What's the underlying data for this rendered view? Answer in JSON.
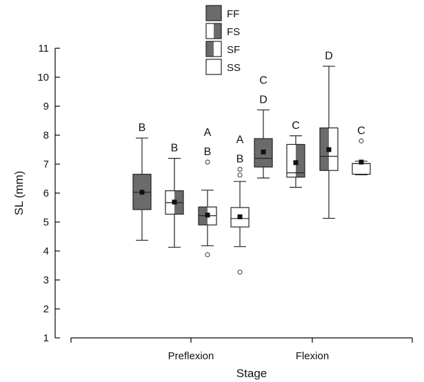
{
  "chart_data": {
    "type": "box",
    "xlabel": "Stage",
    "ylabel": "SL (mm)",
    "ylim": [
      1,
      11
    ],
    "yticks": [
      1,
      2,
      3,
      4,
      5,
      6,
      7,
      8,
      9,
      10,
      11
    ],
    "categories": [
      "Preflexion",
      "Flexion"
    ],
    "legend": {
      "placement": "top",
      "entries": [
        {
          "label": "FF",
          "fill": "full"
        },
        {
          "label": "FS",
          "fill": "right-half"
        },
        {
          "label": "SF",
          "fill": "left-half"
        },
        {
          "label": "SS",
          "fill": "none"
        }
      ]
    },
    "colors": {
      "dark": "#6b6b6b",
      "light": "#ffffff",
      "line": "#222222"
    },
    "series": [
      {
        "name": "FF",
        "fill": "full",
        "boxes": [
          {
            "category": "Preflexion",
            "whisker_low": 4.37,
            "q1": 5.43,
            "median": 6.03,
            "q3": 6.65,
            "whisker_high": 7.9,
            "mean": 6.03,
            "outliers": [],
            "letters": [
              "B"
            ]
          },
          {
            "category": "Flexion",
            "whisker_low": 6.52,
            "q1": 6.9,
            "median": 7.2,
            "q3": 7.88,
            "whisker_high": 8.87,
            "mean": 7.42,
            "outliers": [],
            "letters": [
              "C",
              "D"
            ]
          }
        ]
      },
      {
        "name": "FS",
        "fill": "right-half",
        "boxes": [
          {
            "category": "Preflexion",
            "whisker_low": 4.13,
            "q1": 5.27,
            "median": 5.67,
            "q3": 6.08,
            "whisker_high": 7.2,
            "mean": 5.69,
            "outliers": [],
            "letters": [
              "B"
            ]
          },
          {
            "category": "Flexion",
            "whisker_low": 6.2,
            "q1": 6.55,
            "median": 6.7,
            "q3": 7.68,
            "whisker_high": 7.98,
            "mean": 7.05,
            "outliers": [],
            "letters": [
              "C"
            ]
          }
        ]
      },
      {
        "name": "SF",
        "fill": "left-half",
        "boxes": [
          {
            "category": "Preflexion",
            "whisker_low": 4.18,
            "q1": 4.9,
            "median": 5.22,
            "q3": 5.52,
            "whisker_high": 6.1,
            "mean": 5.24,
            "outliers": [
              7.07,
              3.87
            ],
            "letters": [
              "A",
              "B"
            ]
          },
          {
            "category": "Flexion",
            "whisker_low": 5.13,
            "q1": 6.78,
            "median": 7.27,
            "q3": 8.25,
            "whisker_high": 10.38,
            "mean": 7.5,
            "outliers": [],
            "letters": [
              "D"
            ]
          }
        ]
      },
      {
        "name": "SS",
        "fill": "none",
        "boxes": [
          {
            "category": "Preflexion",
            "whisker_low": 4.15,
            "q1": 4.83,
            "median": 5.12,
            "q3": 5.5,
            "whisker_high": 6.4,
            "mean": 5.18,
            "outliers": [
              6.82,
              6.62,
              3.27
            ],
            "letters": [
              "A",
              "B"
            ]
          },
          {
            "category": "Flexion",
            "whisker_low": 6.63,
            "q1": 6.65,
            "median": 7.02,
            "q3": 7.02,
            "whisker_high": 7.1,
            "mean": 7.07,
            "outliers": [
              7.8
            ],
            "letters": [
              "C"
            ]
          }
        ]
      }
    ]
  }
}
